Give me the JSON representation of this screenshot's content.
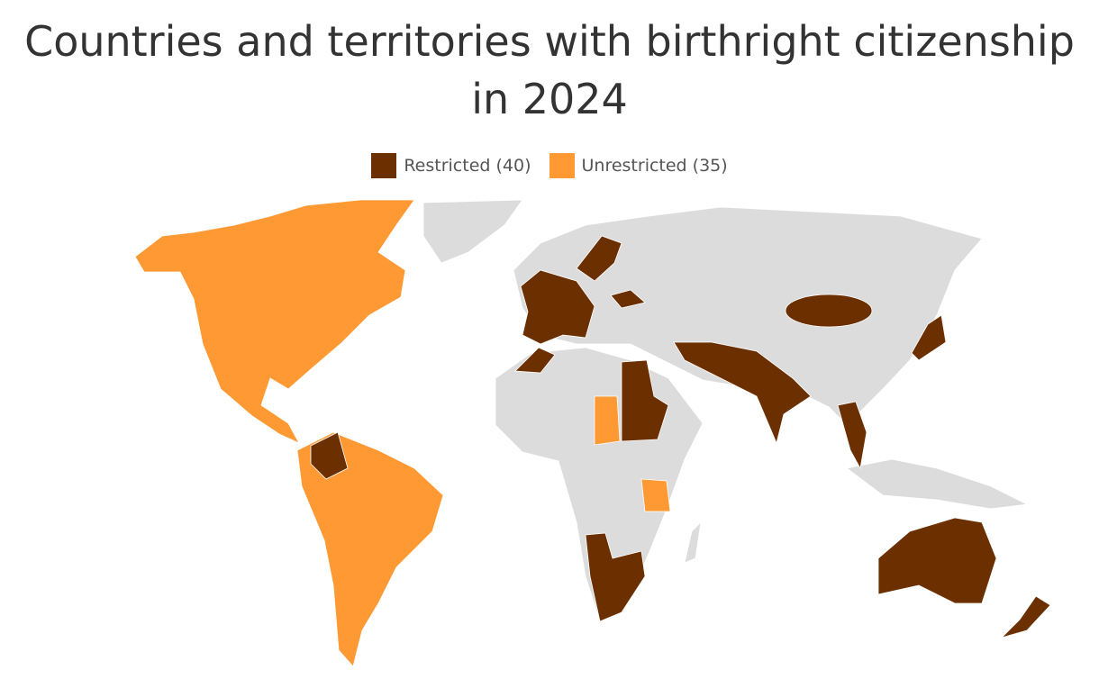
{
  "title": "Countries and territories with birthright citizenship in 2024",
  "legend": [
    {
      "label": "Restricted (40)",
      "color": "#6b2f00"
    },
    {
      "label": "Unrestricted (35)",
      "color": "#ff9933"
    }
  ]
}
